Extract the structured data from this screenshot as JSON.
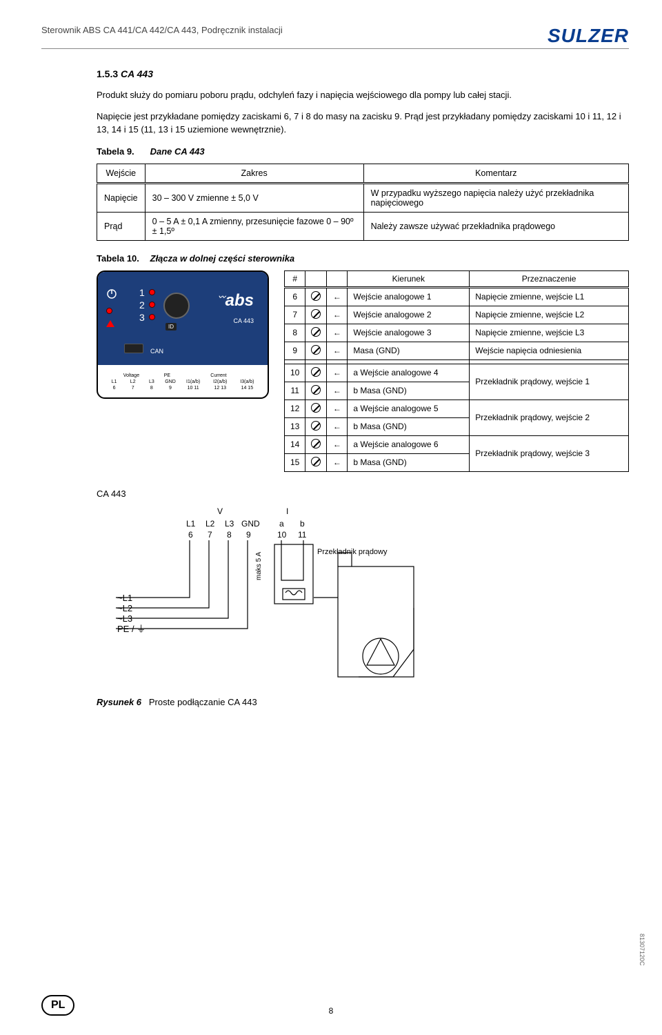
{
  "header": {
    "doc_title": "Sterownik ABS CA 441/CA 442/CA 443, Podręcznik instalacji",
    "brand": "SULZER"
  },
  "section": {
    "number": "1.5.3",
    "title": "CA 443",
    "para1": "Produkt służy do pomiaru poboru prądu, odchyleń fazy i napięcia wejściowego dla pompy lub całej stacji.",
    "para2": "Napięcie jest przykładane pomiędzy zaciskami 6, 7 i 8 do masy na zacisku 9. Prąd jest przykładany pomiędzy zaciskami 10 i 11, 12 i 13, 14 i 15 (11, 13 i 15 uziemione wewnętrznie)."
  },
  "table9": {
    "caption_label": "Tabela 9.",
    "caption_text": "Dane CA 443",
    "headers": [
      "Wejście",
      "Zakres",
      "Komentarz"
    ],
    "rows": [
      {
        "c1": "Napięcie",
        "c2": "30 – 300 V zmienne ± 5,0 V",
        "c3": "W przypadku wyższego napięcia należy użyć przekładnika napięciowego"
      },
      {
        "c1": "Prąd",
        "c2": "0 – 5 A ± 0,1 A zmienny, przesunięcie fazowe 0 – 90º ± 1,5º",
        "c3": "Należy zawsze używać przekładnika prądowego"
      }
    ]
  },
  "table10": {
    "caption_label": "Tabela 10.",
    "caption_text": "Złącza w dolnej części sterownika",
    "headers": {
      "num": "#",
      "dir": "Kierunek",
      "purpose": "Przeznaczenie"
    },
    "rows_a": [
      {
        "n": "6",
        "dir": "Wejście analogowe 1",
        "p": "Napięcie zmienne, wejście L1"
      },
      {
        "n": "7",
        "dir": "Wejście analogowe 2",
        "p": "Napięcie zmienne, wejście L2"
      },
      {
        "n": "8",
        "dir": "Wejście analogowe 3",
        "p": "Napięcie zmienne, wejście L3"
      },
      {
        "n": "9",
        "dir": "Masa (GND)",
        "p": "Wejście napięcia odniesienia"
      }
    ],
    "rows_b": [
      {
        "n": "10",
        "dir": "a Wejście analogowe 4",
        "p": "Przekładnik prądowy, wejście 1",
        "span": 2
      },
      {
        "n": "11",
        "dir": "b Masa (GND)"
      },
      {
        "n": "12",
        "dir": "a Wejście analogowe 5",
        "p": "Przekładnik prądowy, wejście 2",
        "span": 2
      },
      {
        "n": "13",
        "dir": "b Masa (GND)"
      },
      {
        "n": "14",
        "dir": "a Wejście analogowe 6",
        "p": "Przekładnik prądowy, wejście 3",
        "span": 2
      },
      {
        "n": "15",
        "dir": "b Masa (GND)"
      }
    ]
  },
  "device": {
    "leds": [
      "1",
      "2",
      "3"
    ],
    "logo": "abs",
    "model": "CA 443",
    "id": "ID",
    "can": "CAN",
    "group_voltage": "Voltage",
    "group_pe": "PE",
    "group_current": "Current",
    "term_top": [
      "L1",
      "L2",
      "L3",
      "GND",
      "I1(a/b)",
      "I2(a/b)",
      "I3(a/b)"
    ],
    "term_bot": [
      "6",
      "7",
      "8",
      "9",
      "10  11",
      "12  13",
      "14  15"
    ]
  },
  "diagram": {
    "title": "CA 443",
    "v": "V",
    "i": "I",
    "cols": [
      "L1",
      "L2",
      "L3",
      "GND",
      "a",
      "b"
    ],
    "nums": [
      "6",
      "7",
      "8",
      "9",
      "10",
      "11"
    ],
    "max5a": "maks 5 A",
    "transformer": "Przekładnik prądowy",
    "lines": [
      "~L1",
      "~L2",
      "~L3",
      "PE / ⏚"
    ]
  },
  "figure": {
    "label": "Rysunek 6",
    "text": "Proste podłączanie CA 443"
  },
  "footer": {
    "lang": "PL",
    "page": "8",
    "rev": "81307120C"
  }
}
